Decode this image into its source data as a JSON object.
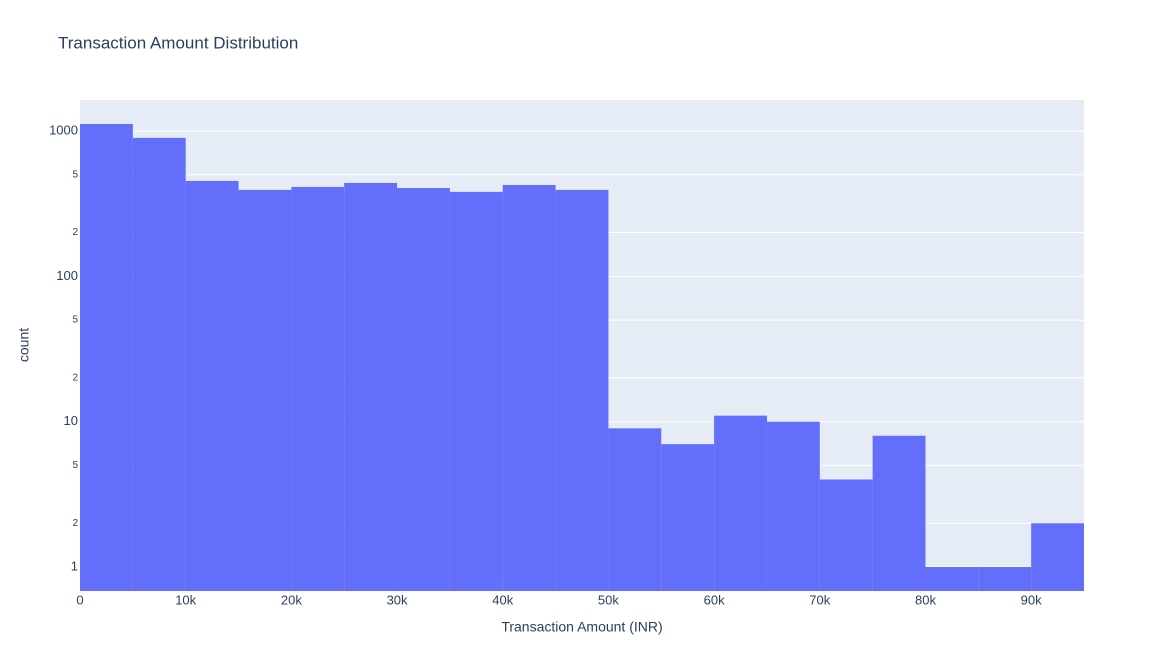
{
  "chart_data": {
    "type": "histogram",
    "title": "Transaction Amount Distribution",
    "x_label": "Transaction Amount (INR)",
    "y_label": "count",
    "bins": [
      0,
      5000,
      10000,
      15000,
      20000,
      25000,
      30000,
      35000,
      40000,
      45000,
      50000,
      55000,
      60000,
      65000,
      70000,
      75000,
      80000,
      85000,
      90000,
      95000
    ],
    "counts": [
      1117,
      896,
      453,
      393,
      412,
      439,
      405,
      381,
      425,
      393,
      9,
      7,
      11,
      10,
      4,
      8,
      1,
      1,
      2
    ],
    "color": "#636efa",
    "xlim": [
      0,
      95000
    ],
    "xticks": [
      0,
      {
        "value": 10000,
        "label": "10k"
      },
      {
        "value": 20000,
        "label": "20k"
      },
      {
        "value": 30000,
        "label": "30k"
      },
      {
        "value": 40000,
        "label": "40k"
      },
      {
        "value": 50000,
        "label": "50k"
      },
      {
        "value": 60000,
        "label": "60k"
      },
      {
        "value": 70000,
        "label": "70k"
      },
      {
        "value": 80000,
        "label": "80k"
      },
      {
        "value": 90000,
        "label": "90k"
      }
    ],
    "ylim": [
      0.684,
      1633
    ],
    "yticks": [
      1,
      2,
      5,
      10,
      {
        "value": 20,
        "label": "2"
      },
      {
        "value": 50,
        "label": "5"
      },
      100,
      {
        "value": 200,
        "label": "2"
      },
      {
        "value": 500,
        "label": "5"
      },
      1000
    ],
    "log_y": true,
    "grid": true
  }
}
